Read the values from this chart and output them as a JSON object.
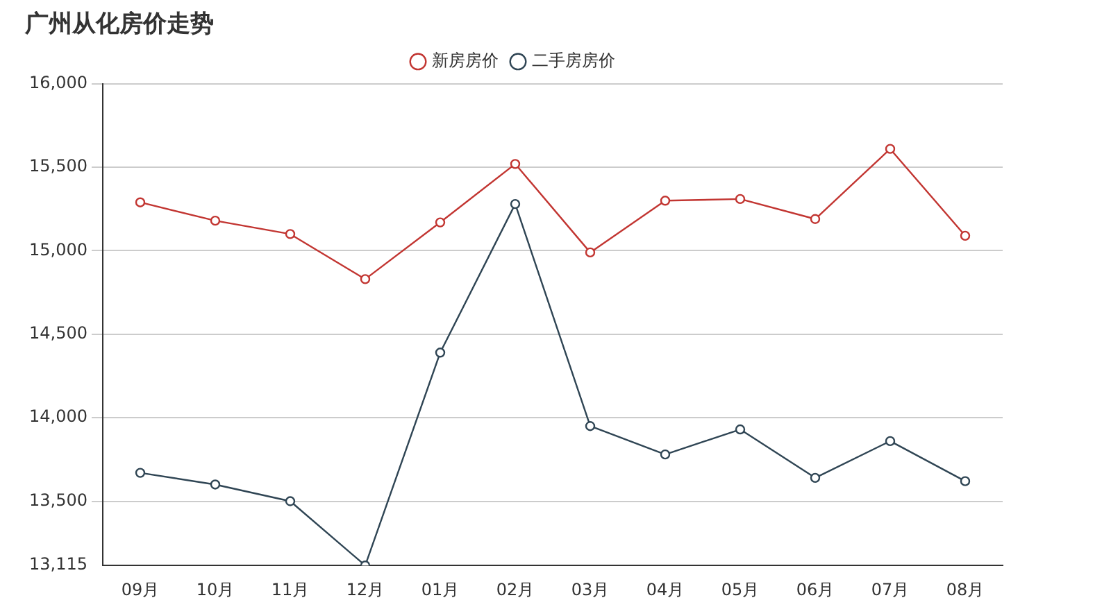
{
  "chart_data": {
    "type": "line",
    "title": "广州从化房价走势",
    "categories": [
      "09月",
      "10月",
      "11月",
      "12月",
      "01月",
      "02月",
      "03月",
      "04月",
      "05月",
      "06月",
      "07月",
      "08月"
    ],
    "series": [
      {
        "name": "新房房价",
        "color": "#c23531",
        "values": [
          15290,
          15180,
          15100,
          14830,
          15170,
          15520,
          14990,
          15300,
          15310,
          15190,
          15610,
          15090
        ]
      },
      {
        "name": "二手房房价",
        "color": "#2f4554",
        "values": [
          13670,
          13600,
          13500,
          13115,
          14390,
          15280,
          13950,
          13780,
          13930,
          13640,
          13860,
          13620
        ]
      }
    ],
    "ylim": [
      13115,
      16000
    ],
    "yticks": [
      {
        "value": 13115,
        "label": "13,115"
      },
      {
        "value": 13500,
        "label": "13,500"
      },
      {
        "value": 14000,
        "label": "14,000"
      },
      {
        "value": 14500,
        "label": "14,500"
      },
      {
        "value": 15000,
        "label": "15,000"
      },
      {
        "value": 15500,
        "label": "15,500"
      },
      {
        "value": 16000,
        "label": "16,000"
      }
    ],
    "grid": "y",
    "legend": "top",
    "marker": "circle",
    "line_style": "solid"
  }
}
